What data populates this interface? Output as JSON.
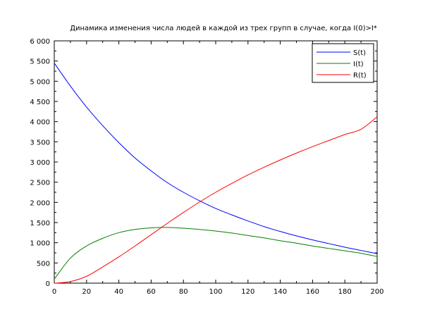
{
  "chart_data": {
    "type": "line",
    "title": "Динамика изменения числа людей в каждой из трех групп в случае, когда I(0)>I*",
    "xlabel": "",
    "ylabel": "",
    "xlim": [
      0,
      200
    ],
    "ylim": [
      0,
      6000
    ],
    "x_ticks": [
      0,
      20,
      40,
      60,
      80,
      100,
      120,
      140,
      160,
      180,
      200
    ],
    "x_tick_labels": [
      "0",
      "20",
      "40",
      "60",
      "80",
      "100",
      "120",
      "140",
      "160",
      "180",
      "200"
    ],
    "y_ticks": [
      0,
      500,
      1000,
      1500,
      2000,
      2500,
      3000,
      3500,
      4000,
      4500,
      5000,
      5500,
      6000
    ],
    "y_tick_labels": [
      "0",
      "500",
      "1 000",
      "1 500",
      "2 000",
      "2 500",
      "3 000",
      "3 500",
      "4 000",
      "4 500",
      "5 000",
      "5 500",
      "6 000"
    ],
    "grid": false,
    "legend_position": "top-right",
    "x": [
      0,
      10,
      20,
      30,
      40,
      50,
      60,
      70,
      80,
      90,
      100,
      110,
      120,
      130,
      140,
      150,
      160,
      170,
      180,
      190,
      200
    ],
    "series": [
      {
        "name": "S(t)",
        "color": "#0000ff",
        "values": [
          5450,
          4880,
          4360,
          3900,
          3480,
          3100,
          2780,
          2490,
          2250,
          2040,
          1850,
          1690,
          1540,
          1400,
          1280,
          1170,
          1070,
          980,
          890,
          810,
          730
        ]
      },
      {
        "name": "I(t)",
        "color": "#008000",
        "values": [
          100,
          620,
          920,
          1110,
          1250,
          1330,
          1370,
          1380,
          1360,
          1330,
          1290,
          1240,
          1180,
          1120,
          1050,
          990,
          920,
          860,
          800,
          740,
          660
        ]
      },
      {
        "name": "R(t)",
        "color": "#ff0000",
        "values": [
          0,
          40,
          170,
          400,
          650,
          920,
          1200,
          1480,
          1750,
          2010,
          2250,
          2470,
          2680,
          2870,
          3050,
          3220,
          3380,
          3530,
          3680,
          3810,
          4120
        ]
      }
    ]
  }
}
